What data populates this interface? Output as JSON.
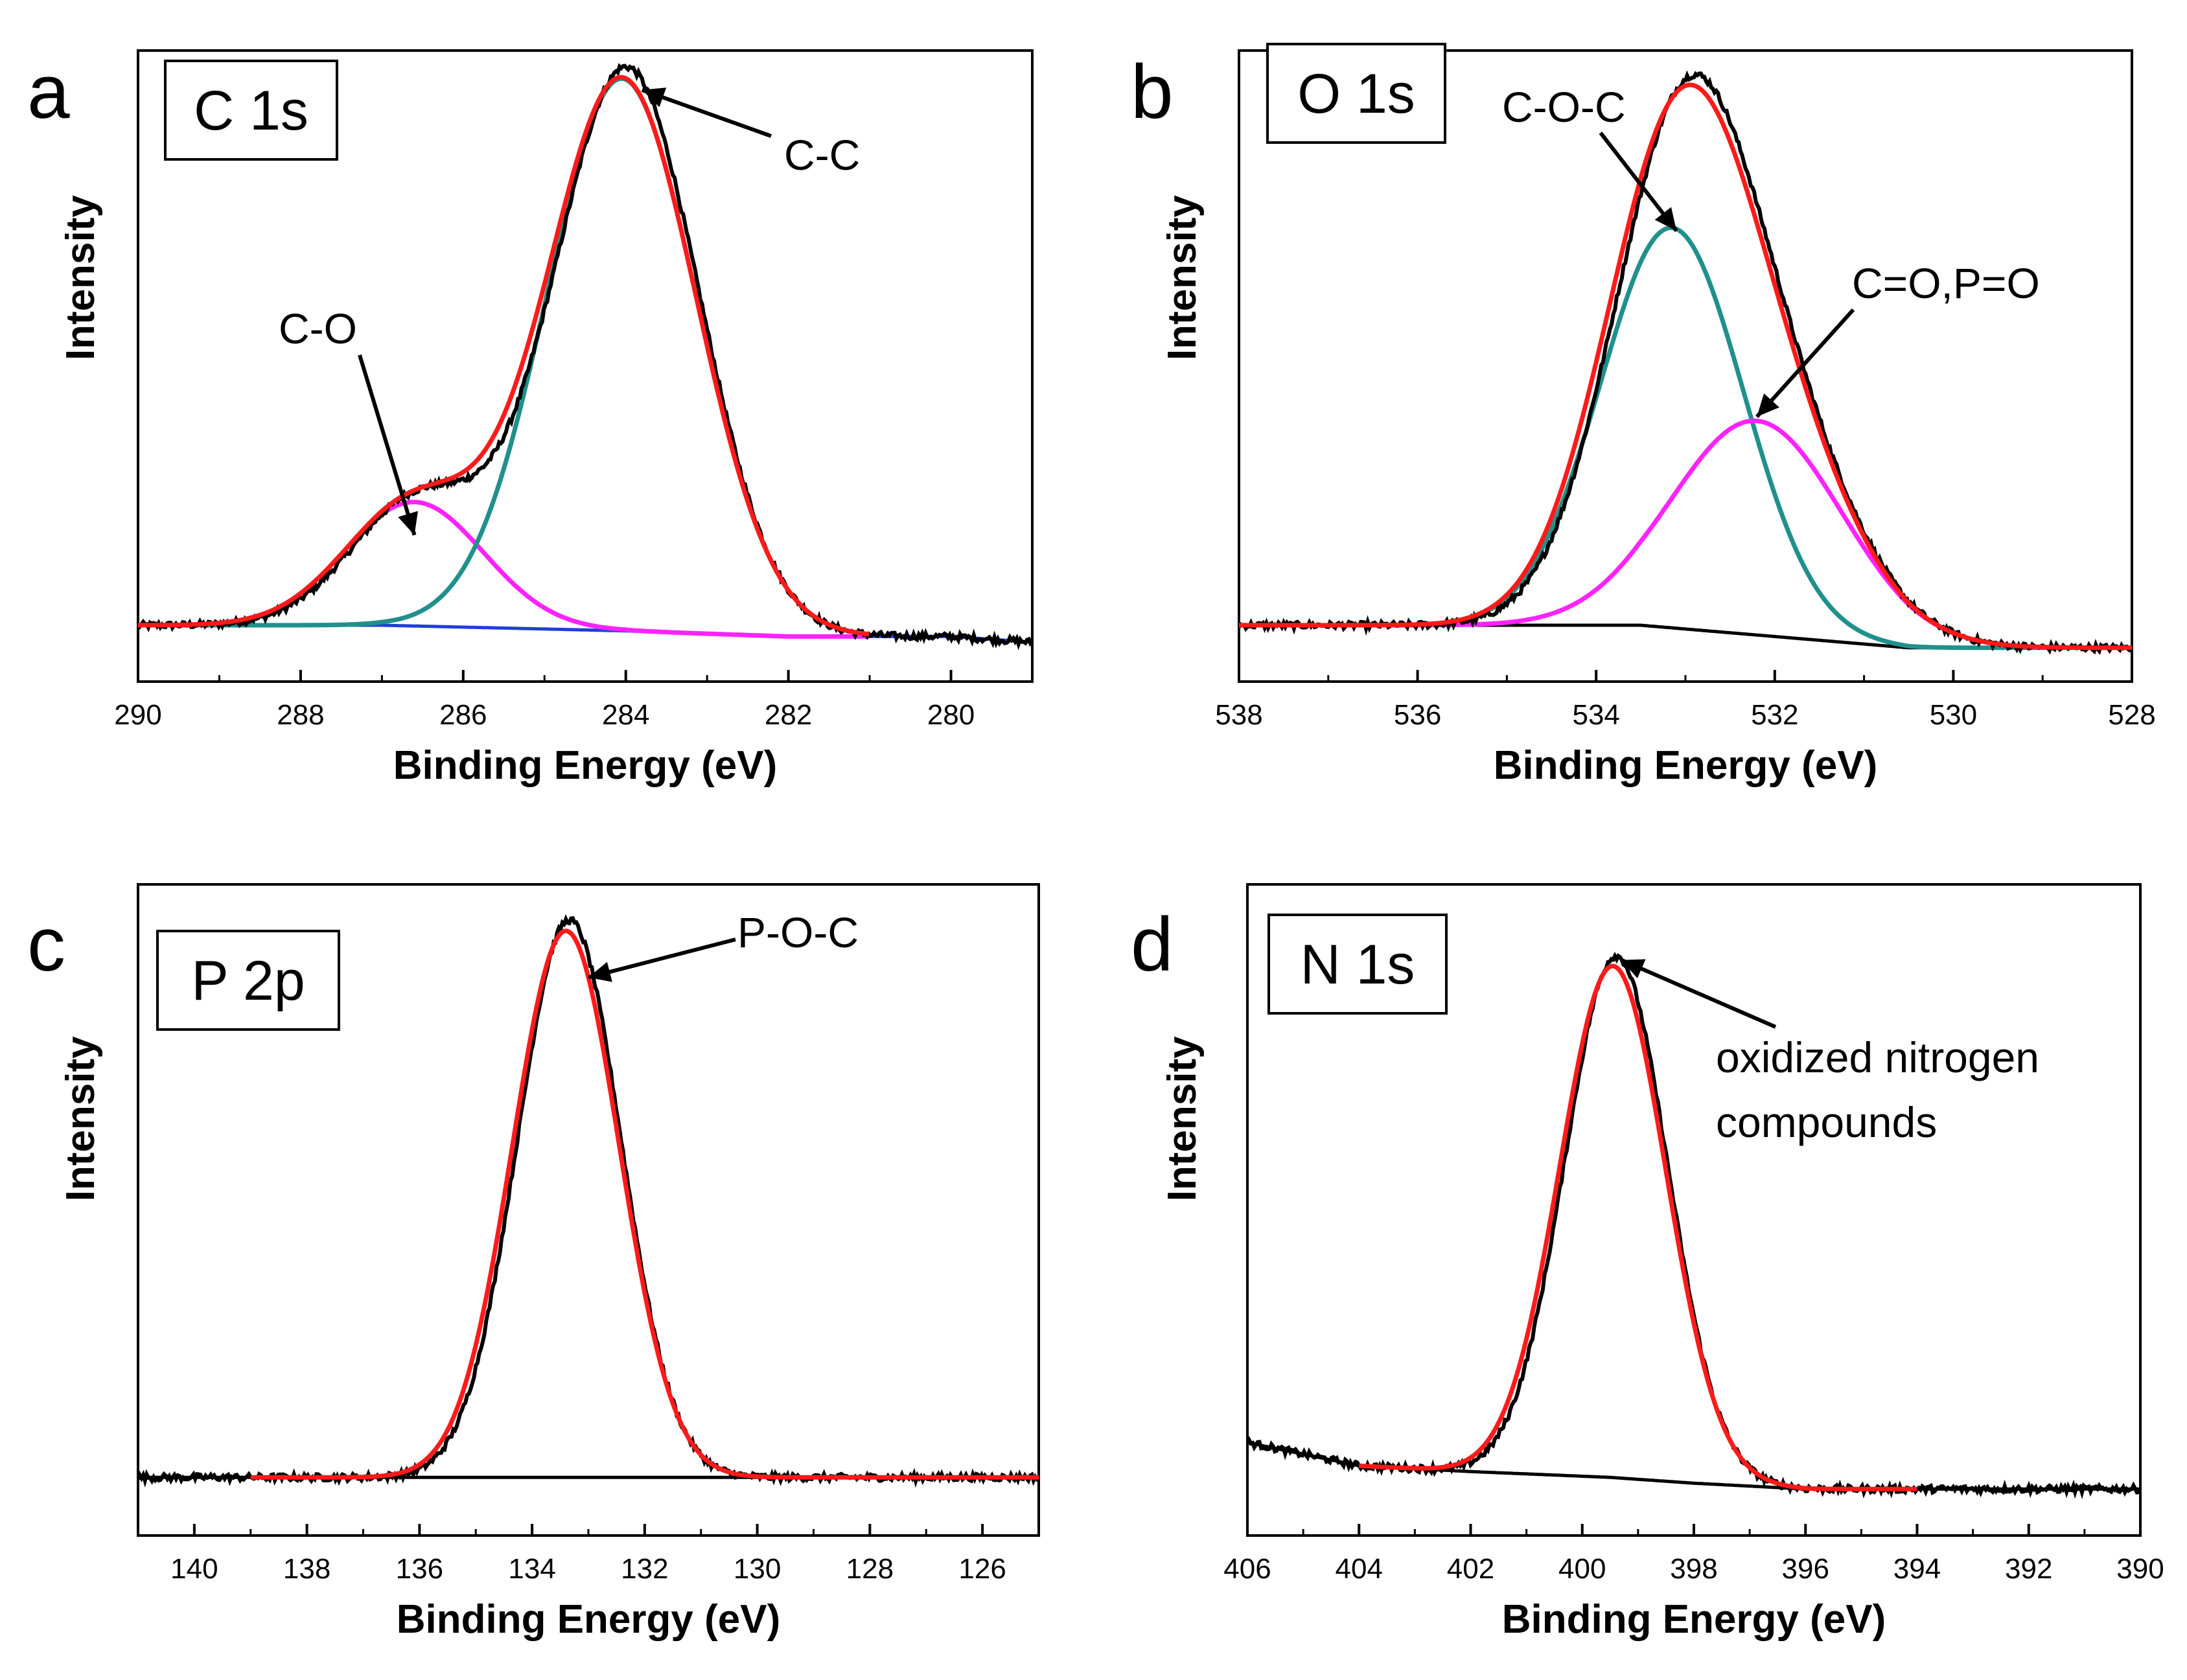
{
  "colors": {
    "raw": "#000000",
    "envelope": "#ff1a1a",
    "peak_teal": "#20908c",
    "peak_magenta": "#ff22ff",
    "baseline_blue": "#1f3fd9"
  },
  "chart_data": [
    {
      "type": "line",
      "panel": "a",
      "label": "C 1s",
      "xlabel": "Binding Energy (eV)",
      "ylabel": "Intensity",
      "xlim": [
        290,
        279
      ],
      "x_reversed": true,
      "xticks": [
        290,
        288,
        286,
        284,
        282,
        280
      ],
      "ylim": [
        0,
        1.12
      ],
      "baseline": [
        [
          290.0,
          0.1
        ],
        [
          287.0,
          0.1
        ],
        [
          284.0,
          0.09
        ],
        [
          282.0,
          0.08
        ],
        [
          280.0,
          0.08
        ],
        [
          279.0,
          0.07
        ]
      ],
      "peaks": [
        {
          "name": "C-O",
          "center": 286.6,
          "height": 0.22,
          "sigma": 0.85,
          "color_key": "peak_magenta"
        },
        {
          "name": "C-C",
          "center": 284.05,
          "height": 0.98,
          "sigma": 0.92,
          "color_key": "peak_teal"
        }
      ],
      "fit_range": [
        290.0,
        281.0
      ],
      "raw_range": [
        290.0,
        279.0
      ],
      "annotations": [
        {
          "text": "C-O",
          "target_x": 286.6,
          "target_y": 0.26
        },
        {
          "text": "C-C",
          "target_x": 283.8,
          "target_y": 1.05
        }
      ]
    },
    {
      "type": "line",
      "panel": "b",
      "label": "O 1s",
      "xlabel": "Binding Energy (eV)",
      "ylabel": "Intensity",
      "xlim": [
        538,
        528
      ],
      "x_reversed": true,
      "xticks": [
        538,
        536,
        534,
        532,
        530,
        528
      ],
      "ylim": [
        0,
        1.12
      ],
      "baseline": [
        [
          538.0,
          0.1
        ],
        [
          535.0,
          0.1
        ],
        [
          533.5,
          0.1
        ],
        [
          532.0,
          0.08
        ],
        [
          530.5,
          0.06
        ],
        [
          528.0,
          0.06
        ]
      ],
      "peaks": [
        {
          "name": "C-O-C",
          "center": 533.15,
          "height": 0.71,
          "sigma": 0.8,
          "color_key": "peak_teal"
        },
        {
          "name": "C=O,P=O",
          "center": 532.2,
          "height": 0.38,
          "sigma": 0.95,
          "color_key": "peak_magenta"
        }
      ],
      "fit_range": [
        538.0,
        528.0
      ],
      "raw_range": [
        538.0,
        528.0
      ],
      "annotations": [
        {
          "text": "C-O-C",
          "target_x": 533.1,
          "target_y": 0.8
        },
        {
          "text": "C=O,P=O",
          "target_x": 532.2,
          "target_y": 0.47
        }
      ]
    },
    {
      "type": "line",
      "panel": "c",
      "label": "P 2p",
      "xlabel": "Binding Energy (eV)",
      "ylabel": "Intensity",
      "xlim": [
        141,
        125
      ],
      "x_reversed": true,
      "xticks": [
        140,
        138,
        136,
        134,
        132,
        130,
        128,
        126
      ],
      "ylim": [
        0,
        1.12
      ],
      "baseline": [
        [
          141.0,
          0.1
        ],
        [
          133.0,
          0.1
        ],
        [
          125.0,
          0.1
        ]
      ],
      "peaks": [
        {
          "name": "P-O-C",
          "center": 133.4,
          "height": 0.94,
          "sigma": 0.95,
          "color_key": "envelope"
        }
      ],
      "fit_range": [
        139.0,
        125.0
      ],
      "raw_range": [
        141.0,
        125.0
      ],
      "annotations": [
        {
          "text": "P-O-C",
          "target_x": 133.0,
          "target_y": 0.96
        }
      ]
    },
    {
      "type": "line",
      "panel": "d",
      "label": "N 1s",
      "xlabel": "Binding Energy (eV)",
      "ylabel": "Intensity",
      "xlim": [
        406,
        390
      ],
      "x_reversed": true,
      "xticks": [
        406,
        404,
        402,
        400,
        398,
        396,
        394,
        392,
        390
      ],
      "ylim": [
        0,
        1.12
      ],
      "baseline": [
        [
          406.0,
          0.16
        ],
        [
          404.0,
          0.12
        ],
        [
          402.0,
          0.11
        ],
        [
          399.5,
          0.1
        ],
        [
          398.0,
          0.09
        ],
        [
          396.0,
          0.08
        ],
        [
          390.0,
          0.08
        ]
      ],
      "peaks": [
        {
          "name": "oxidized nitrogen compounds",
          "center": 399.45,
          "height": 0.88,
          "sigma": 0.95,
          "color_key": "envelope"
        }
      ],
      "fit_range": [
        404.0,
        394.0
      ],
      "raw_range": [
        406.0,
        390.0
      ],
      "annotations": [
        {
          "text": "oxidized nitrogen",
          "target_x": 399.3,
          "target_y": 0.99
        },
        {
          "text": "compounds",
          "target_x": null,
          "target_y": null
        }
      ]
    }
  ]
}
